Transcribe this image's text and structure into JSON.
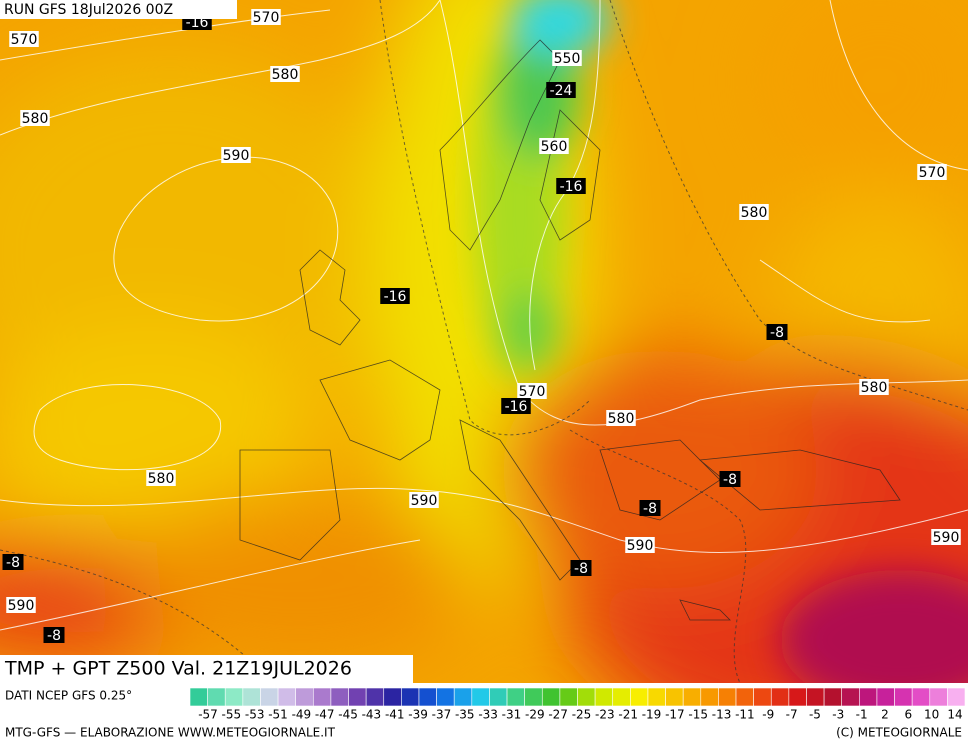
{
  "header": {
    "title": "RUN GFS 18Jul2026 00Z"
  },
  "map": {
    "labels": [
      "-16",
      "570",
      "570",
      "580",
      "550",
      "-24",
      "580",
      "590",
      "560",
      "-16",
      "570",
      "580",
      "-16",
      "-8",
      "570",
      "-16",
      "580",
      "580",
      "-8",
      "580",
      "590",
      "-8",
      "590",
      "590",
      "-8",
      "-8",
      "590",
      "-8"
    ],
    "caption": "TMP + GPT Z500 Val. 21Z19JUL2026"
  },
  "legend": {
    "source": "DATI NCEP GFS 0.25°",
    "ticks": [
      "-57",
      "-55",
      "-53",
      "-51",
      "-49",
      "-47",
      "-45",
      "-43",
      "-41",
      "-39",
      "-37",
      "-35",
      "-33",
      "-31",
      "-29",
      "-27",
      "-25",
      "-23",
      "-21",
      "-19",
      "-17",
      "-15",
      "-13",
      "-11",
      "-9",
      "-7",
      "-5",
      "-3",
      "-1",
      "2",
      "6",
      "10",
      "14"
    ]
  },
  "footer": {
    "left": "MTG-GFS — ELABORAZIONE WWW.METEOGIORNALE.IT",
    "right": "(C) METEOGIORNALE"
  }
}
